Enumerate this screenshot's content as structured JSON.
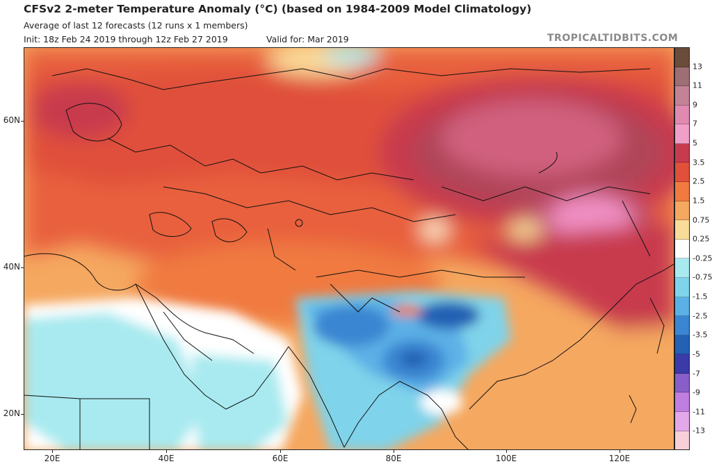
{
  "header": {
    "title": "CFSv2 2-meter Temperature Anomaly (°C) (based on 1984-2009 Model Climatology)",
    "subtitle": "Average of last 12 forecasts (12 runs x 1 members)",
    "init": "Init: 18z Feb 24 2019 through 12z Feb 27 2019",
    "valid": "Valid for: Mar 2019",
    "brand": "TROPICALTIDBITS.COM"
  },
  "axes": {
    "lat_labels": [
      "60N",
      "40N",
      "20N"
    ],
    "lon_labels": [
      "20E",
      "40E",
      "60E",
      "80E",
      "100E",
      "120E"
    ]
  },
  "colorbar": {
    "labels": [
      "13",
      "11",
      "9",
      "7",
      "5",
      "3.5",
      "2.5",
      "1.5",
      "0.75",
      "0.25",
      "-0.25",
      "-0.75",
      "-1.5",
      "-2.5",
      "-3.5",
      "-5",
      "-7",
      "-9",
      "-11",
      "-13"
    ],
    "colors": [
      "#6b4c3b",
      "#9e6e75",
      "#c48296",
      "#e08ab0",
      "#f0a0c8",
      "#c83a4e",
      "#e0503a",
      "#f07a40",
      "#f5a860",
      "#fadc9a",
      "#ffffff",
      "#a8eaf0",
      "#7fd3ea",
      "#5bb0e6",
      "#3a86d2",
      "#2460b4",
      "#3a3aa8",
      "#8a5ec8",
      "#c07ee0",
      "#e4a8ea",
      "#f6cfd8"
    ]
  }
}
